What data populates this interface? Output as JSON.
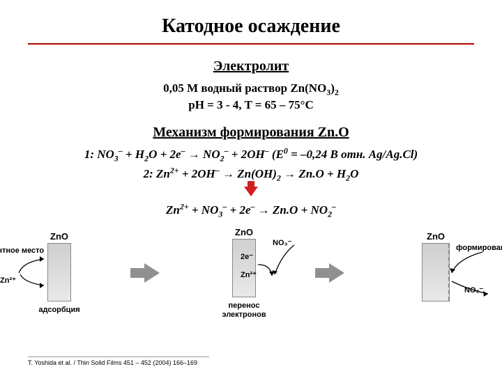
{
  "title": "Катодное осаждение",
  "electrolyte": {
    "heading": "Электролит",
    "line1_html": "0,05 М водный раствор Zn(NO<sub>3</sub>)<sub>2</sub>",
    "line2_html": "pH = 3 - 4, T = 65 – 75°C"
  },
  "mechanism": {
    "heading": "Механизм формирования Zn.O",
    "eq1_html": "1: NO<sub>3</sub><sup>–</sup> + H<sub>2</sub>O + 2e<sup>–</sup> → NO<sub>2</sub><sup>–</sup> + 2OH<sup>–</sup>  (E<sup>0</sup> = –0,24 В отн. Ag/Ag.Cl)",
    "eq2_html": "2: Zn<sup>2+</sup> + 2OH<sup>–</sup> → Zn(OH)<sub>2</sub> → Zn.O + H<sub>2</sub>O",
    "eq_sum_html": "Zn<sup>2+</sup> + NO<sub>3</sub><sup>–</sup> + 2e<sup>–</sup> → Zn.O + NO<sub>2</sub><sup>–</sup>"
  },
  "colors": {
    "title": "#000000",
    "rule": "#b00000",
    "arrow": "#d02020",
    "bar_fill_top": "#cfcfcf",
    "bar_fill_bottom": "#e9e9e9",
    "bar_border": "#888888",
    "big_arrow": "#909090",
    "text": "#000000"
  },
  "diagram": {
    "stages": [
      {
        "top": "ZnO",
        "side_labels": [
          {
            "text": "вакантное место",
            "pos": "left-top"
          },
          {
            "text": "Zn²⁺",
            "pos": "left-mid"
          },
          {
            "text": "адсорбция",
            "pos": "bottom"
          }
        ]
      },
      {
        "top": "ZnO",
        "side_labels": [
          {
            "text": "2e⁻",
            "pos": "right-upper"
          },
          {
            "text": "Zn²⁺",
            "pos": "right-mid"
          },
          {
            "text": "NO₃⁻",
            "pos": "right-top-out"
          },
          {
            "text": "перенос электронов",
            "pos": "bottom"
          }
        ]
      },
      {
        "top": "ZnO",
        "dashed": true,
        "side_labels": [
          {
            "text": "формирование ZnO",
            "pos": "right-text"
          },
          {
            "text": "NO₂⁻",
            "pos": "right-low-out"
          }
        ]
      }
    ]
  },
  "citation": "T. Yoshida et al. / Thin Solid Films 451 – 452 (2004) 166–169"
}
